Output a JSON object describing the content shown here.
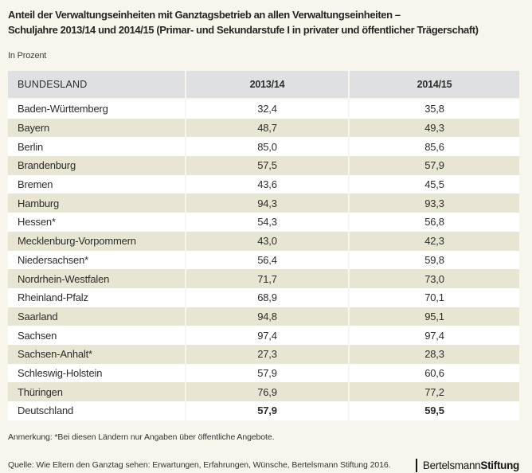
{
  "title": {
    "line1": "Anteil der Verwaltungseinheiten mit Ganztagsbetrieb an allen Verwaltungseinheiten –",
    "line2": "Schuljahre 2013/14 und 2014/15 (Primar- und Sekundarstufe I in privater und öffentlicher Trägerschaft)"
  },
  "subtitle": "In Prozent",
  "table": {
    "headers": {
      "col1": "BUNDESLAND",
      "col2": "2013/14",
      "col3": "2014/15"
    },
    "rows": [
      {
        "land": "Baden-Württemberg",
        "y1": "32,4",
        "y2": "35,8"
      },
      {
        "land": "Bayern",
        "y1": "48,7",
        "y2": "49,3"
      },
      {
        "land": "Berlin",
        "y1": "85,0",
        "y2": "85,6"
      },
      {
        "land": "Brandenburg",
        "y1": "57,5",
        "y2": "57,9"
      },
      {
        "land": "Bremen",
        "y1": "43,6",
        "y2": "45,5"
      },
      {
        "land": "Hamburg",
        "y1": "94,3",
        "y2": "93,3"
      },
      {
        "land": "Hessen*",
        "y1": "54,3",
        "y2": "56,8"
      },
      {
        "land": "Mecklenburg-Vorpommern",
        "y1": "43,0",
        "y2": "42,3"
      },
      {
        "land": "Niedersachsen*",
        "y1": "56,4",
        "y2": "59,8"
      },
      {
        "land": "Nordrhein-Westfalen",
        "y1": "71,7",
        "y2": "73,0"
      },
      {
        "land": "Rheinland-Pfalz",
        "y1": "68,9",
        "y2": "70,1"
      },
      {
        "land": "Saarland",
        "y1": "94,8",
        "y2": "95,1"
      },
      {
        "land": "Sachsen",
        "y1": "97,4",
        "y2": "97,4"
      },
      {
        "land": "Sachsen-Anhalt*",
        "y1": "27,3",
        "y2": "28,3"
      },
      {
        "land": "Schleswig-Holstein",
        "y1": "57,9",
        "y2": "60,6"
      },
      {
        "land": "Thüringen",
        "y1": "76,9",
        "y2": "77,2"
      },
      {
        "land": "Deutschland",
        "y1": "57,9",
        "y2": "59,5"
      }
    ]
  },
  "footer": {
    "note": "Anmerkung: *Bei diesen Ländern nur Angaben über öffentliche Angebote.",
    "source": "Quelle: Wie Eltern den Ganztag sehen: Erwartungen, Erfahrungen, Wünsche, Bertelsmann Stiftung 2016.",
    "logo_part1": "Bertelsmann",
    "logo_part2": "Stiftung"
  },
  "colors": {
    "page_background": "#f8f5ec",
    "header_row": "#dfe0e1",
    "beige_row": "#e8e5d2",
    "white_row": "#ffffff",
    "text": "#2d2d2d"
  },
  "chart_data": {
    "type": "table",
    "title": "Anteil der Verwaltungseinheiten mit Ganztagsbetrieb an allen Verwaltungseinheiten – Schuljahre 2013/14 und 2014/15 (Primar- und Sekundarstufe I in privater und öffentlicher Trägerschaft)",
    "unit": "In Prozent",
    "columns": [
      "BUNDESLAND",
      "2013/14",
      "2014/15"
    ],
    "categories": [
      "Baden-Württemberg",
      "Bayern",
      "Berlin",
      "Brandenburg",
      "Bremen",
      "Hamburg",
      "Hessen*",
      "Mecklenburg-Vorpommern",
      "Niedersachsen*",
      "Nordrhein-Westfalen",
      "Rheinland-Pfalz",
      "Saarland",
      "Sachsen",
      "Sachsen-Anhalt*",
      "Schleswig-Holstein",
      "Thüringen",
      "Deutschland"
    ],
    "series": [
      {
        "name": "2013/14",
        "values": [
          32.4,
          48.7,
          85.0,
          57.5,
          43.6,
          94.3,
          54.3,
          43.0,
          56.4,
          71.7,
          68.9,
          94.8,
          97.4,
          27.3,
          57.9,
          76.9,
          57.9
        ]
      },
      {
        "name": "2014/15",
        "values": [
          35.8,
          49.3,
          85.6,
          57.9,
          45.5,
          93.3,
          56.8,
          42.3,
          59.8,
          73.0,
          70.1,
          95.1,
          97.4,
          28.3,
          60.6,
          77.2,
          59.5
        ]
      }
    ],
    "note": "Anmerkung: *Bei diesen Ländern nur Angaben über öffentliche Angebote.",
    "source": "Quelle: Wie Eltern den Ganztag sehen: Erwartungen, Erfahrungen, Wünsche, Bertelsmann Stiftung 2016."
  }
}
